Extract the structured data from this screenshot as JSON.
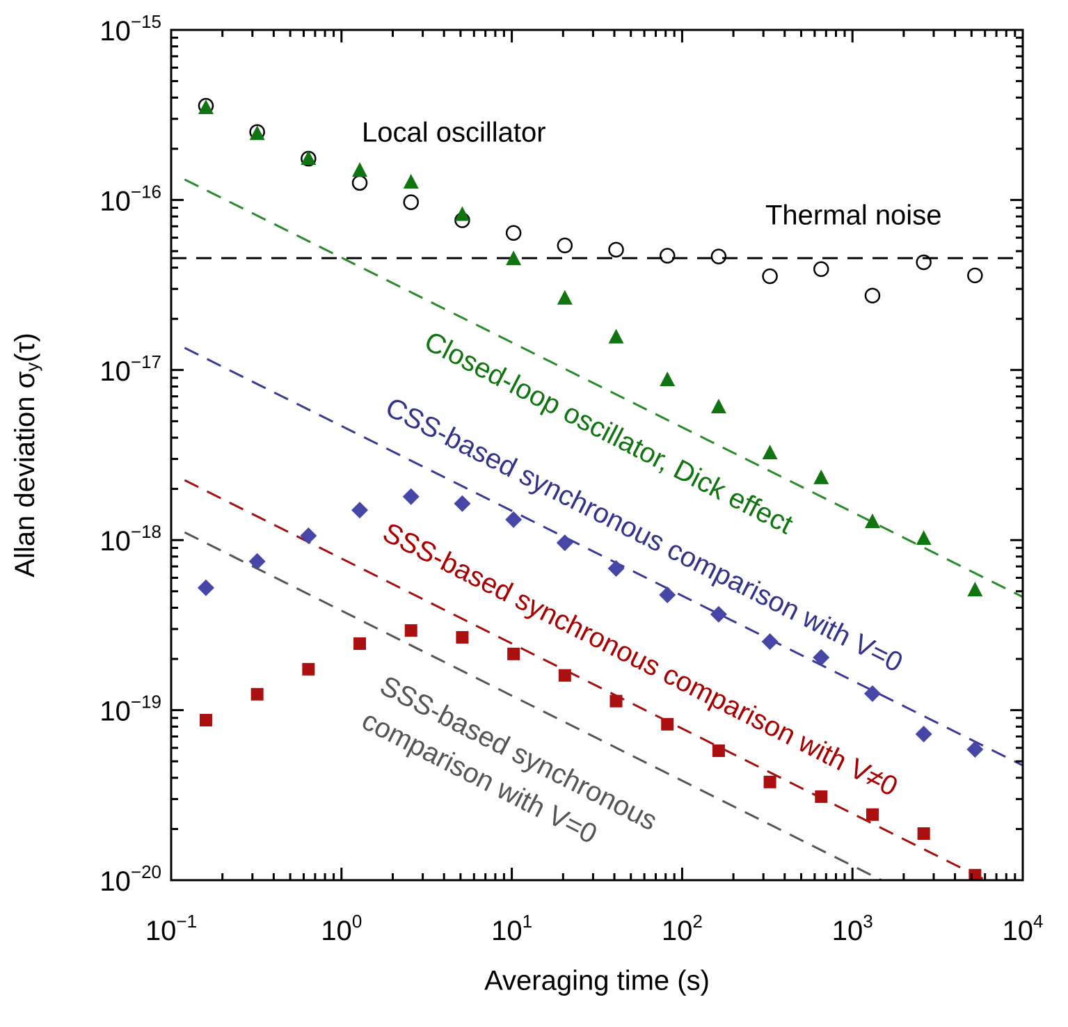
{
  "chart_data": {
    "type": "scatter",
    "xlabel": "Averaging time (s)",
    "ylabel": [
      "Allan deviation σ",
      "y",
      "(τ)"
    ],
    "xscale": "log",
    "yscale": "log",
    "xlim": [
      0.1,
      10000
    ],
    "ylim": [
      1e-20,
      1e-15
    ],
    "xticks": [
      {
        "value": 0.1,
        "label": "10−1"
      },
      {
        "value": 1,
        "label": "100"
      },
      {
        "value": 10,
        "label": "101"
      },
      {
        "value": 100,
        "label": "102"
      },
      {
        "value": 1000,
        "label": "103"
      },
      {
        "value": 10000,
        "label": "104"
      }
    ],
    "yticks": [
      {
        "value": 1e-20,
        "label": "10−20"
      },
      {
        "value": 1e-19,
        "label": "10−19"
      },
      {
        "value": 1e-18,
        "label": "10−18"
      },
      {
        "value": 1e-17,
        "label": "10−17"
      },
      {
        "value": 1e-16,
        "label": "10−16"
      },
      {
        "value": 1e-15,
        "label": "10−15"
      }
    ],
    "x": [
      0.16,
      0.32,
      0.64,
      1.28,
      2.56,
      5.12,
      10.24,
      20.48,
      40.96,
      81.92,
      163.84,
      327.68,
      655.36,
      1310.72,
      2621.44,
      5242.88
    ],
    "series": [
      {
        "marker": "circle",
        "color": "#000000",
        "values": [
          3.58e-16,
          2.51e-16,
          1.75e-16,
          1.26e-16,
          9.7e-17,
          7.6e-17,
          6.4e-17,
          5.4e-17,
          5.1e-17,
          4.7e-17,
          4.65e-17,
          3.56e-17,
          3.92e-17,
          2.74e-17,
          4.3e-17,
          3.6e-17
        ]
      },
      {
        "marker": "triangle",
        "color": "#107510",
        "values": [
          3.48e-16,
          2.45e-16,
          1.75e-16,
          1.49e-16,
          1.27e-16,
          8.2e-17,
          4.5e-17,
          2.64e-17,
          1.56e-17,
          8.75e-18,
          6.06e-18,
          3.25e-18,
          2.32e-18,
          1.28e-18,
          1.02e-18,
          5.08e-19
        ]
      },
      {
        "marker": "diamond",
        "color": "#4646a6",
        "values": [
          5.24e-19,
          7.49e-19,
          1.06e-18,
          1.5e-18,
          1.8e-18,
          1.64e-18,
          1.32e-18,
          9.64e-19,
          6.81e-19,
          4.76e-19,
          3.66e-19,
          2.53e-19,
          2.04e-19,
          1.25e-19,
          7.23e-20,
          5.88e-20
        ]
      },
      {
        "marker": "square",
        "color": "#ab0f0f",
        "values": [
          8.73e-20,
          1.24e-19,
          1.74e-19,
          2.46e-19,
          2.94e-19,
          2.68e-19,
          2.14e-19,
          1.6e-19,
          1.13e-19,
          8.26e-20,
          5.77e-20,
          3.78e-20,
          3.1e-20,
          2.43e-20,
          1.88e-20,
          1.07e-20
        ]
      }
    ],
    "lines": [
      {
        "style": "dashed",
        "color": "#000000",
        "x": [
          0.1,
          10000
        ],
        "values": [
          4.55e-17,
          4.55e-17
        ]
      },
      {
        "style": "dashed",
        "color": "#2a8a2a",
        "x": [
          0.12,
          10000
        ],
        "values": [
          1.32e-16,
          4.63e-19
        ]
      },
      {
        "style": "dashed",
        "color": "#3a3a90",
        "x": [
          0.12,
          10000
        ],
        "values": [
          1.35e-17,
          4.73e-20
        ]
      },
      {
        "style": "dashed",
        "color": "#a01010",
        "x": [
          0.12,
          6070
        ],
        "values": [
          2.25e-18,
          1e-20
        ]
      },
      {
        "style": "dashed",
        "color": "#555555",
        "x": [
          0.12,
          1480
        ],
        "values": [
          1.11e-18,
          1e-20
        ]
      }
    ],
    "annotations": [
      {
        "text": "Local oscillator",
        "color": "#000000"
      },
      {
        "text": "Thermal noise",
        "color": "#000000"
      },
      {
        "text": "Closed-loop oscillator, Dick effect",
        "color": "#107510"
      },
      {
        "text": "CSS-based synchronous comparison with V=0",
        "color": "#33338a"
      },
      {
        "text": "SSS-based synchronous comparison with V≠0",
        "color": "#a80000"
      },
      {
        "text": "SSS-based synchronous",
        "color": "#555555"
      },
      {
        "text": "comparison with V=0",
        "color": "#555555"
      }
    ]
  }
}
